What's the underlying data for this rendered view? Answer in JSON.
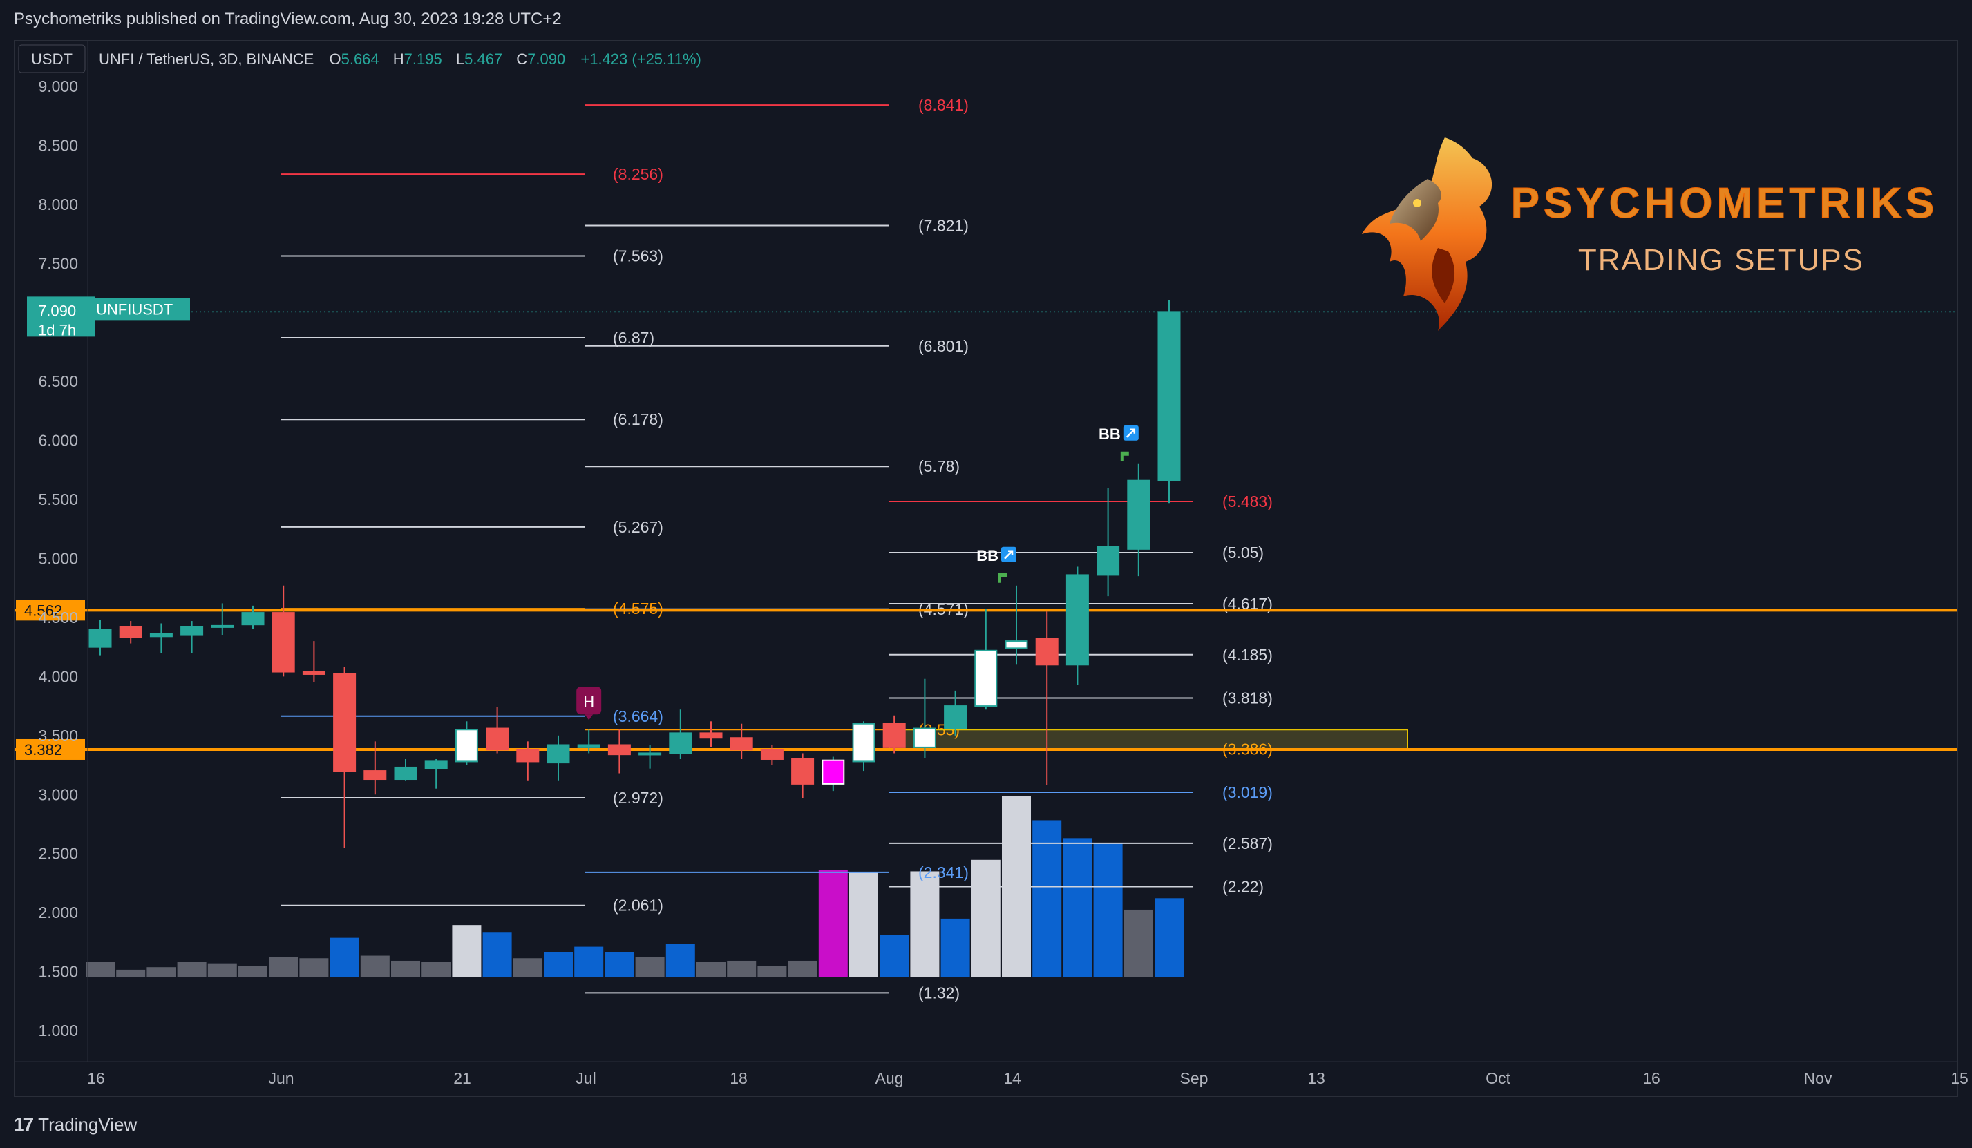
{
  "header": {
    "published": "Psychometriks published on TradingView.com, Aug 30, 2023 19:28 UTC+2"
  },
  "legend": {
    "currency": "USDT",
    "symbol": "UNFI / TetherUS, 3D, BINANCE",
    "o_label": "O",
    "o_value": "5.664",
    "h_label": "H",
    "h_value": "7.195",
    "l_label": "L",
    "l_value": "5.467",
    "c_label": "C",
    "c_value": "7.090",
    "change": "+1.423 (+25.11%)"
  },
  "price_tag": {
    "value": "7.090",
    "countdown": "1d 7h",
    "symbol": "UNFIUSDT"
  },
  "watermark": {
    "title": "PSYCHOMETRIKS",
    "subtitle": "TRADING SETUPS"
  },
  "footer": {
    "brand": "TradingView"
  },
  "colors": {
    "up": "#26a69a",
    "down": "#ef5350",
    "orange": "#ff9800",
    "white_line": "#d1d4dc",
    "red_line": "#f23645",
    "blue_line": "#5b9cf6",
    "vol_grey": "#5d606b",
    "vol_blue": "#0b63d0",
    "vol_light": "#d1d4dc",
    "vol_magenta": "#c90ec9"
  },
  "chart_data": {
    "type": "candlestick",
    "y_axis": {
      "min": 0.7,
      "max": 9.0,
      "ticks": [
        "9.000",
        "8.500",
        "8.000",
        "7.500",
        "7.000",
        "6.500",
        "6.000",
        "5.500",
        "5.000",
        "4.500",
        "4.000",
        "3.500",
        "3.000",
        "2.500",
        "2.000",
        "1.500",
        "1.000"
      ]
    },
    "x_axis": {
      "ticks": [
        "16",
        "Jun",
        "21",
        "Jul",
        "18",
        "Aug",
        "14",
        "Sep",
        "13",
        "Oct",
        "16",
        "Nov",
        "15"
      ]
    },
    "candles": [
      {
        "o": 4.25,
        "h": 4.48,
        "l": 4.18,
        "c": 4.4
      },
      {
        "o": 4.42,
        "h": 4.47,
        "l": 4.28,
        "c": 4.33
      },
      {
        "o": 4.34,
        "h": 4.45,
        "l": 4.2,
        "c": 4.36
      },
      {
        "o": 4.35,
        "h": 4.47,
        "l": 4.2,
        "c": 4.42
      },
      {
        "o": 4.42,
        "h": 4.62,
        "l": 4.35,
        "c": 4.43
      },
      {
        "o": 4.44,
        "h": 4.6,
        "l": 4.4,
        "c": 4.54
      },
      {
        "o": 4.54,
        "h": 4.77,
        "l": 4.0,
        "c": 4.04
      },
      {
        "o": 4.04,
        "h": 4.3,
        "l": 3.95,
        "c": 4.02
      },
      {
        "o": 4.02,
        "h": 4.08,
        "l": 2.55,
        "c": 3.2
      },
      {
        "o": 3.2,
        "h": 3.45,
        "l": 3.0,
        "c": 3.13
      },
      {
        "o": 3.13,
        "h": 3.3,
        "l": 3.12,
        "c": 3.23
      },
      {
        "o": 3.22,
        "h": 3.3,
        "l": 3.05,
        "c": 3.28
      },
      {
        "o": 3.28,
        "h": 3.62,
        "l": 3.25,
        "c": 3.55,
        "white": true
      },
      {
        "o": 3.56,
        "h": 3.74,
        "l": 3.35,
        "c": 3.38
      },
      {
        "o": 3.38,
        "h": 3.45,
        "l": 3.12,
        "c": 3.28
      },
      {
        "o": 3.27,
        "h": 3.5,
        "l": 3.12,
        "c": 3.42
      },
      {
        "o": 3.4,
        "h": 3.55,
        "l": 3.35,
        "c": 3.42
      },
      {
        "o": 3.42,
        "h": 3.55,
        "l": 3.18,
        "c": 3.34
      },
      {
        "o": 3.34,
        "h": 3.42,
        "l": 3.22,
        "c": 3.35
      },
      {
        "o": 3.35,
        "h": 3.72,
        "l": 3.3,
        "c": 3.52
      },
      {
        "o": 3.52,
        "h": 3.62,
        "l": 3.4,
        "c": 3.48
      },
      {
        "o": 3.48,
        "h": 3.6,
        "l": 3.3,
        "c": 3.38
      },
      {
        "o": 3.38,
        "h": 3.42,
        "l": 3.25,
        "c": 3.3
      },
      {
        "o": 3.3,
        "h": 3.35,
        "l": 2.97,
        "c": 3.09
      },
      {
        "o": 3.09,
        "h": 3.32,
        "l": 3.03,
        "c": 3.29,
        "magenta": true
      },
      {
        "o": 3.28,
        "h": 3.62,
        "l": 3.2,
        "c": 3.6,
        "white": true
      },
      {
        "o": 3.6,
        "h": 3.67,
        "l": 3.35,
        "c": 3.4
      },
      {
        "o": 3.4,
        "h": 3.98,
        "l": 3.31,
        "c": 3.56,
        "white": true
      },
      {
        "o": 3.56,
        "h": 3.88,
        "l": 3.5,
        "c": 3.75
      },
      {
        "o": 3.75,
        "h": 4.57,
        "l": 3.72,
        "c": 4.22,
        "white": true
      },
      {
        "o": 4.24,
        "h": 4.77,
        "l": 4.1,
        "c": 4.3,
        "white": true
      },
      {
        "o": 4.32,
        "h": 4.55,
        "l": 3.08,
        "c": 4.1
      },
      {
        "o": 4.1,
        "h": 4.93,
        "l": 3.93,
        "c": 4.86
      },
      {
        "o": 4.86,
        "h": 5.6,
        "l": 4.68,
        "c": 5.1
      },
      {
        "o": 5.08,
        "h": 5.8,
        "l": 4.85,
        "c": 5.66
      },
      {
        "o": 5.66,
        "h": 7.19,
        "l": 5.47,
        "c": 7.09
      }
    ],
    "volumes": [
      {
        "v": 0.12,
        "k": "grey"
      },
      {
        "v": 0.06,
        "k": "grey"
      },
      {
        "v": 0.08,
        "k": "grey"
      },
      {
        "v": 0.12,
        "k": "grey"
      },
      {
        "v": 0.11,
        "k": "grey"
      },
      {
        "v": 0.09,
        "k": "grey"
      },
      {
        "v": 0.16,
        "k": "grey"
      },
      {
        "v": 0.15,
        "k": "grey"
      },
      {
        "v": 0.31,
        "k": "blue"
      },
      {
        "v": 0.17,
        "k": "grey"
      },
      {
        "v": 0.13,
        "k": "grey"
      },
      {
        "v": 0.12,
        "k": "grey"
      },
      {
        "v": 0.41,
        "k": "light"
      },
      {
        "v": 0.35,
        "k": "blue"
      },
      {
        "v": 0.15,
        "k": "grey"
      },
      {
        "v": 0.2,
        "k": "blue"
      },
      {
        "v": 0.24,
        "k": "blue"
      },
      {
        "v": 0.2,
        "k": "blue"
      },
      {
        "v": 0.16,
        "k": "grey"
      },
      {
        "v": 0.26,
        "k": "blue"
      },
      {
        "v": 0.12,
        "k": "grey"
      },
      {
        "v": 0.13,
        "k": "grey"
      },
      {
        "v": 0.09,
        "k": "grey"
      },
      {
        "v": 0.13,
        "k": "grey"
      },
      {
        "v": 0.84,
        "k": "magenta"
      },
      {
        "v": 0.82,
        "k": "light"
      },
      {
        "v": 0.33,
        "k": "blue"
      },
      {
        "v": 0.83,
        "k": "light"
      },
      {
        "v": 0.46,
        "k": "blue"
      },
      {
        "v": 0.92,
        "k": "light"
      },
      {
        "v": 1.42,
        "k": "light"
      },
      {
        "v": 1.23,
        "k": "blue"
      },
      {
        "v": 1.09,
        "k": "blue"
      },
      {
        "v": 1.05,
        "k": "blue"
      },
      {
        "v": 0.53,
        "k": "grey"
      },
      {
        "v": 0.62,
        "k": "blue"
      }
    ],
    "horizontal_levels": [
      {
        "price": 4.562,
        "label": "4.562",
        "color": "orange"
      },
      {
        "price": 3.382,
        "label": "3.382",
        "color": "orange"
      }
    ],
    "fib_levels": [
      {
        "group": 1,
        "price": 8.256,
        "label": "(8.256)",
        "color": "red"
      },
      {
        "group": 1,
        "price": 7.563,
        "label": "(7.563)",
        "color": "white"
      },
      {
        "group": 1,
        "price": 6.87,
        "label": "(6.87)",
        "color": "white"
      },
      {
        "group": 1,
        "price": 6.178,
        "label": "(6.178)",
        "color": "white"
      },
      {
        "group": 1,
        "price": 5.267,
        "label": "(5.267)",
        "color": "white"
      },
      {
        "group": 1,
        "price": 4.575,
        "label": "(4.575)",
        "color": "orange"
      },
      {
        "group": 1,
        "price": 3.664,
        "label": "(3.664)",
        "color": "blue"
      },
      {
        "group": 1,
        "price": 2.972,
        "label": "(2.972)",
        "color": "white"
      },
      {
        "group": 1,
        "price": 2.061,
        "label": "(2.061)",
        "color": "white"
      },
      {
        "group": 2,
        "price": 8.841,
        "label": "(8.841)",
        "color": "red"
      },
      {
        "group": 2,
        "price": 7.821,
        "label": "(7.821)",
        "color": "white"
      },
      {
        "group": 2,
        "price": 6.801,
        "label": "(6.801)",
        "color": "white"
      },
      {
        "group": 2,
        "price": 5.78,
        "label": "(5.78)",
        "color": "white"
      },
      {
        "group": 2,
        "price": 4.571,
        "label": "(4.571)",
        "color": "white"
      },
      {
        "group": 2,
        "price": 3.55,
        "label": "(3.55)",
        "color": "orange"
      },
      {
        "group": 2,
        "price": 2.341,
        "label": "(2.341)",
        "color": "blue"
      },
      {
        "group": 2,
        "price": 1.32,
        "label": "(1.32)",
        "color": "white"
      },
      {
        "group": 3,
        "price": 5.483,
        "label": "(5.483)",
        "color": "red"
      },
      {
        "group": 3,
        "price": 5.05,
        "label": "(5.05)",
        "color": "white"
      },
      {
        "group": 3,
        "price": 4.617,
        "label": "(4.617)",
        "color": "white"
      },
      {
        "group": 3,
        "price": 4.185,
        "label": "(4.185)",
        "color": "white"
      },
      {
        "group": 3,
        "price": 3.818,
        "label": "(3.818)",
        "color": "white"
      },
      {
        "group": 3,
        "price": 3.386,
        "label": "(3.386)",
        "color": "orange"
      },
      {
        "group": 3,
        "price": 3.019,
        "label": "(3.019)",
        "color": "blue"
      },
      {
        "group": 3,
        "price": 2.587,
        "label": "(2.587)",
        "color": "white"
      },
      {
        "group": 3,
        "price": 2.22,
        "label": "(2.22)",
        "color": "white"
      }
    ],
    "markers": [
      {
        "type": "H",
        "candle": 16
      },
      {
        "type": "BB",
        "candle": 30
      },
      {
        "type": "BB",
        "candle": 34
      }
    ]
  }
}
